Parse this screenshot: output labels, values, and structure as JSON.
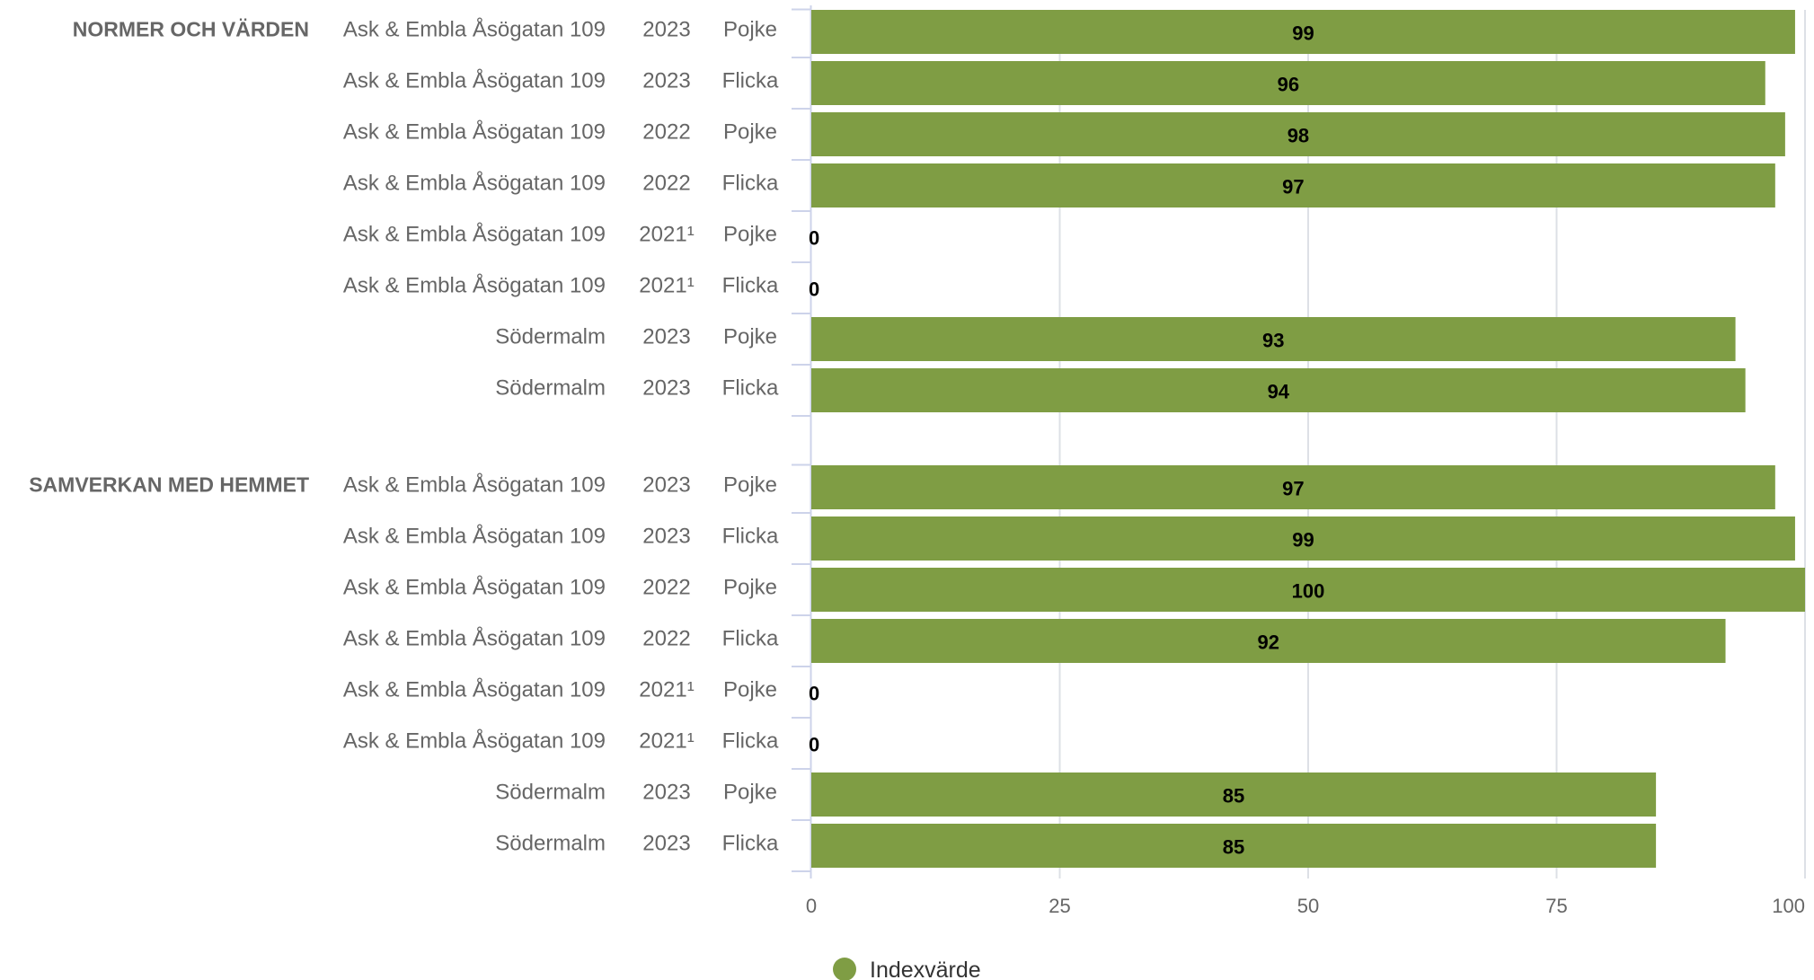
{
  "chart_data": {
    "type": "bar",
    "orientation": "horizontal",
    "xlim": [
      0,
      100
    ],
    "xticks": [
      0,
      25,
      50,
      75,
      100
    ],
    "grid": true,
    "legend_position": "bottom-center",
    "colors": {
      "bar": "#7f9d44",
      "grid": "#dde0e6",
      "axis": "#cdd3ea",
      "text": "#666666"
    },
    "series": [
      {
        "name": "Indexvärde",
        "color": "#7f9d44"
      }
    ],
    "groups": [
      {
        "label": "NORMER OCH VÄRDEN",
        "rows": [
          {
            "unit": "Ask & Embla Åsögatan 109",
            "year": "2023",
            "gender": "Pojke",
            "value": 99
          },
          {
            "unit": "Ask & Embla Åsögatan 109",
            "year": "2023",
            "gender": "Flicka",
            "value": 96
          },
          {
            "unit": "Ask & Embla Åsögatan 109",
            "year": "2022",
            "gender": "Pojke",
            "value": 98
          },
          {
            "unit": "Ask & Embla Åsögatan 109",
            "year": "2022",
            "gender": "Flicka",
            "value": 97
          },
          {
            "unit": "Ask & Embla Åsögatan 109",
            "year": "2021¹",
            "gender": "Pojke",
            "value": 0
          },
          {
            "unit": "Ask & Embla Åsögatan 109",
            "year": "2021¹",
            "gender": "Flicka",
            "value": 0
          },
          {
            "unit": "Södermalm",
            "year": "2023",
            "gender": "Pojke",
            "value": 93
          },
          {
            "unit": "Södermalm",
            "year": "2023",
            "gender": "Flicka",
            "value": 94
          }
        ]
      },
      {
        "label": "SAMVERKAN MED HEMMET",
        "rows": [
          {
            "unit": "Ask & Embla Åsögatan 109",
            "year": "2023",
            "gender": "Pojke",
            "value": 97
          },
          {
            "unit": "Ask & Embla Åsögatan 109",
            "year": "2023",
            "gender": "Flicka",
            "value": 99
          },
          {
            "unit": "Ask & Embla Åsögatan 109",
            "year": "2022",
            "gender": "Pojke",
            "value": 100
          },
          {
            "unit": "Ask & Embla Åsögatan 109",
            "year": "2022",
            "gender": "Flicka",
            "value": 92
          },
          {
            "unit": "Ask & Embla Åsögatan 109",
            "year": "2021¹",
            "gender": "Pojke",
            "value": 0
          },
          {
            "unit": "Ask & Embla Åsögatan 109",
            "year": "2021¹",
            "gender": "Flicka",
            "value": 0
          },
          {
            "unit": "Södermalm",
            "year": "2023",
            "gender": "Pojke",
            "value": 85
          },
          {
            "unit": "Södermalm",
            "year": "2023",
            "gender": "Flicka",
            "value": 85
          }
        ]
      }
    ]
  }
}
